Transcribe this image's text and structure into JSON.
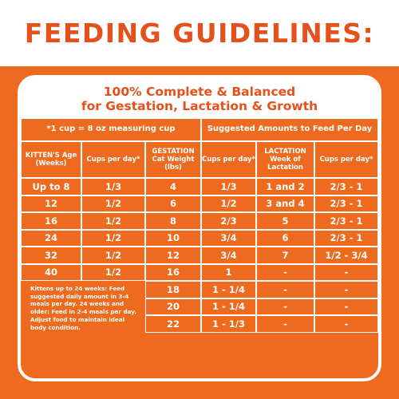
{
  "page_title": "FEEDING GUIDELINES:",
  "card": {
    "line1": "100% Complete & Balanced",
    "line2": "for Gestation, Lactation & Growth"
  },
  "subheader": {
    "cup_note": "*1 cup = 8 oz measuring cup",
    "suggested": "Suggested Amounts to Feed Per Day"
  },
  "headers": {
    "kitten_age": "KITTEN'S Age (Weeks)",
    "cups1": "Cups per day*",
    "gestation": "GESTATION Cat Weight (lbs)",
    "cups2": "Cups per day*",
    "lactation": "LACTATION Week of Lactation",
    "cups3": "Cups per day*"
  },
  "rows": [
    [
      "Up to 8",
      "1/3",
      "4",
      "1/3",
      "1 and 2",
      "2/3 - 1"
    ],
    [
      "12",
      "1/2",
      "6",
      "1/2",
      "3 and 4",
      "2/3 - 1"
    ],
    [
      "16",
      "1/2",
      "8",
      "2/3",
      "5",
      "2/3 - 1"
    ],
    [
      "24",
      "1/2",
      "10",
      "3/4",
      "6",
      "2/3 - 1"
    ],
    [
      "32",
      "1/2",
      "12",
      "3/4",
      "7",
      "1/2 - 3/4"
    ],
    [
      "40",
      "1/2",
      "16",
      "1",
      "-",
      "-"
    ],
    [
      "",
      "",
      "18",
      "1 - 1/4",
      "-",
      "-"
    ],
    [
      "",
      "",
      "20",
      "1 - 1/4",
      "-",
      "-"
    ],
    [
      "",
      "",
      "22",
      "1 - 1/3",
      "-",
      "-"
    ]
  ],
  "footnote": "Kittens up to 24 weeks: Feed suggested daily amount in 3-4 meals per day. 24 weeks and older: Feed in 2-4 meals per day. Adjust food to maintain ideal body condition.",
  "colors": {
    "brand_orange": "#ee6a1f",
    "title_orange": "#e5511c",
    "white": "#ffffff"
  }
}
